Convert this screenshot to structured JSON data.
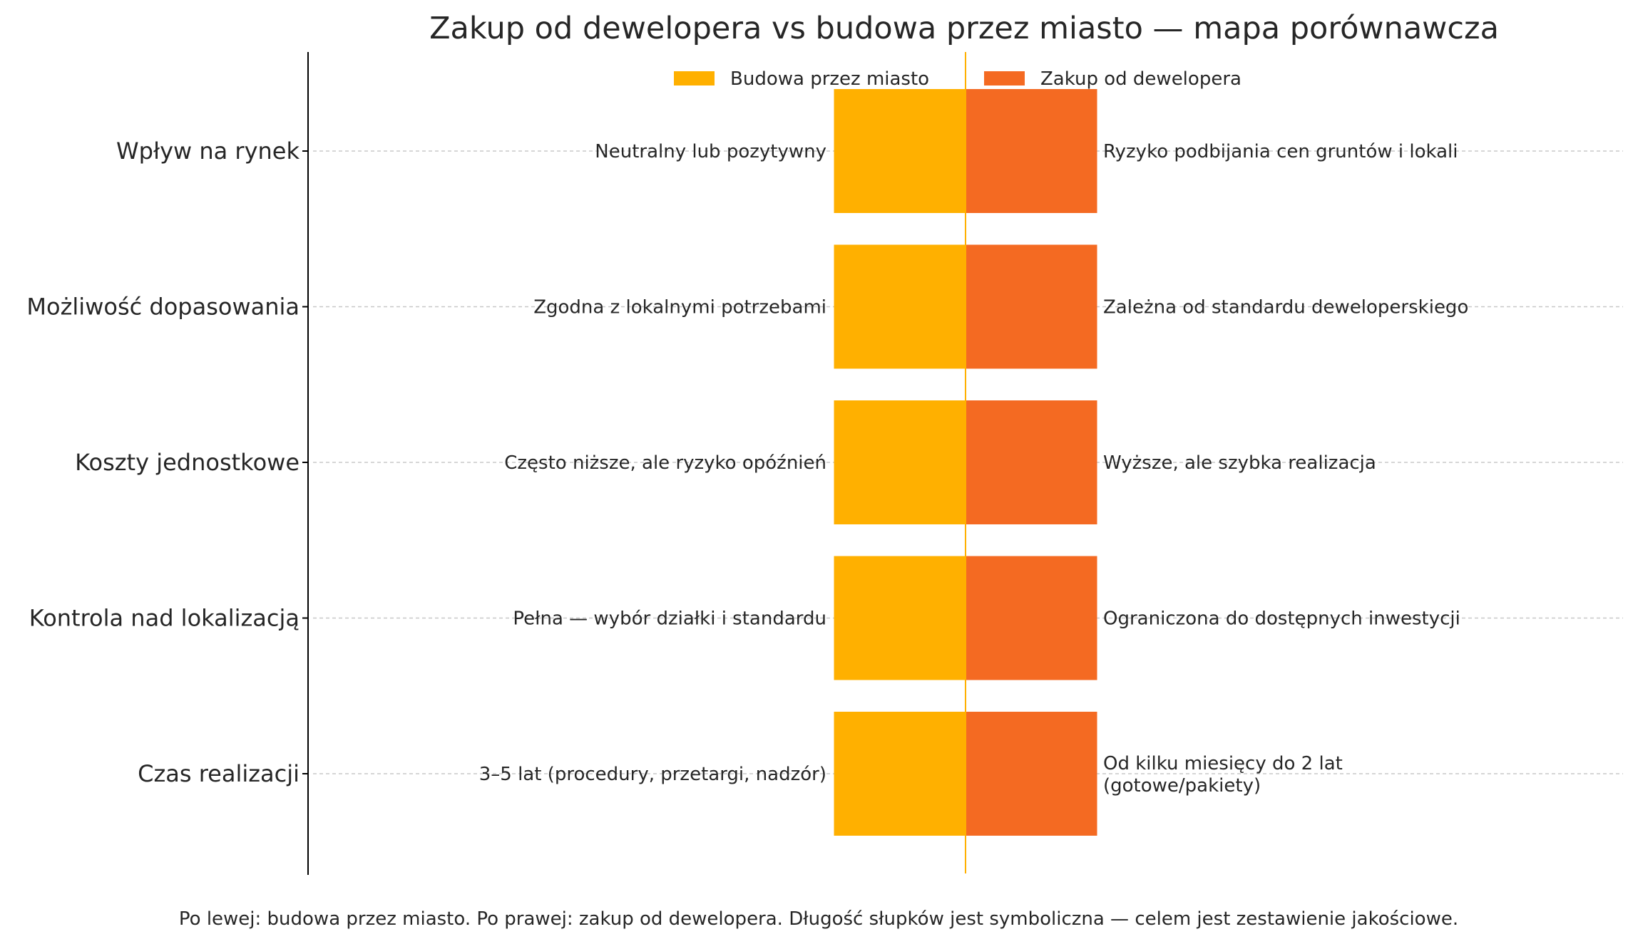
{
  "chart_data": {
    "type": "bar",
    "orientation": "horizontal-diverging",
    "title": "Zakup od dewelopera vs budowa przez miasto — mapa porównawcza",
    "categories": [
      "Wpływ na rynek",
      "Możliwość dopasowania",
      "Koszty jednostkowe",
      "Kontrola nad lokalizacją",
      "Czas realizacji"
    ],
    "xlim": [
      -1.5,
      5
    ],
    "grid": "horizontal dashed",
    "legend_position": "top-center",
    "series": [
      {
        "name": "Budowa przez miasto",
        "color": "#FFB000",
        "values": [
          -1,
          -1,
          -1,
          -1,
          -1
        ],
        "labels": [
          "Neutralny lub pozytywny",
          "Zgodna z lokalnymi potrzebami",
          "Często niższe, ale ryzyko opóźnień",
          "Pełna — wybór działki i standardu",
          "3–5 lat (procedury, przetargi, nadzór)"
        ]
      },
      {
        "name": "Zakup od dewelopera",
        "color": "#F46A22",
        "values": [
          1,
          1,
          1,
          1,
          1
        ],
        "labels": [
          "Ryzyko podbijania cen gruntów i lokali",
          "Zależna od standardu deweloperskiego",
          "Wyższe, ale szybka realizacja",
          "Ograniczona do dostępnych inwestycji",
          "Od kilku miesięcy do 2 lat\n(gotowe/pakiety)"
        ]
      }
    ],
    "footnote": "Po lewej: budowa przez miasto. Po prawej: zakup od dewelopera. Długość słupków jest symboliczna — celem jest zestawienie jakościowe."
  }
}
